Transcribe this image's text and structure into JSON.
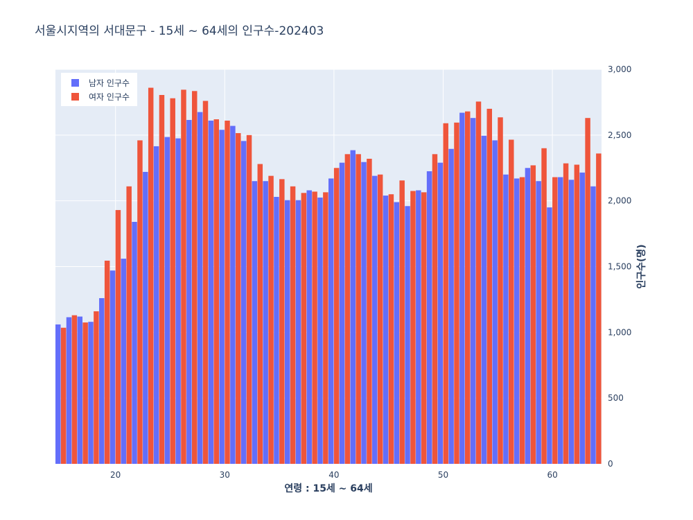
{
  "chart_data": {
    "type": "bar",
    "title": "서울시지역의 서대문구 - 15세 ~ 64세의 인구수-202403",
    "xlabel": "연령 : 15세 ~ 64세",
    "ylabel": "인구수(명)",
    "x": [
      15,
      16,
      17,
      18,
      19,
      20,
      21,
      22,
      23,
      24,
      25,
      26,
      27,
      28,
      29,
      30,
      31,
      32,
      33,
      34,
      35,
      36,
      37,
      38,
      39,
      40,
      41,
      42,
      43,
      44,
      45,
      46,
      47,
      48,
      49,
      50,
      51,
      52,
      53,
      54,
      55,
      56,
      57,
      58,
      59,
      60,
      61,
      62,
      63,
      64
    ],
    "x_ticks": [
      "20",
      "30",
      "40",
      "50",
      "60"
    ],
    "ylim": [
      0,
      3000
    ],
    "y_ticks": [
      "0",
      "500",
      "1,000",
      "1,500",
      "2,000",
      "2,500",
      "3,000"
    ],
    "y_axis_side": "right",
    "grid": true,
    "legend_position": "top-left",
    "series": [
      {
        "name": "남자 인구수",
        "color": "#636efa",
        "values": [
          1060,
          1115,
          1120,
          1080,
          1260,
          1470,
          1560,
          1840,
          2220,
          2415,
          2485,
          2475,
          2615,
          2675,
          2610,
          2540,
          2570,
          2455,
          2150,
          2150,
          2030,
          2005,
          2005,
          2080,
          2025,
          2170,
          2290,
          2385,
          2295,
          2190,
          2040,
          1990,
          1960,
          2080,
          2225,
          2290,
          2395,
          2670,
          2630,
          2495,
          2460,
          2200,
          2170,
          2250,
          2150,
          1950,
          2180,
          2160,
          2215,
          2110
        ]
      },
      {
        "name": "여자 인구수",
        "color": "#ef553b",
        "values": [
          1035,
          1130,
          1075,
          1160,
          1545,
          1930,
          2110,
          2460,
          2860,
          2805,
          2780,
          2845,
          2835,
          2760,
          2620,
          2610,
          2515,
          2500,
          2280,
          2190,
          2165,
          2110,
          2060,
          2070,
          2065,
          2250,
          2355,
          2355,
          2320,
          2200,
          2050,
          2155,
          2075,
          2065,
          2355,
          2590,
          2595,
          2680,
          2755,
          2700,
          2635,
          2465,
          2180,
          2270,
          2400,
          2180,
          2285,
          2275,
          2630,
          2360
        ]
      }
    ]
  }
}
